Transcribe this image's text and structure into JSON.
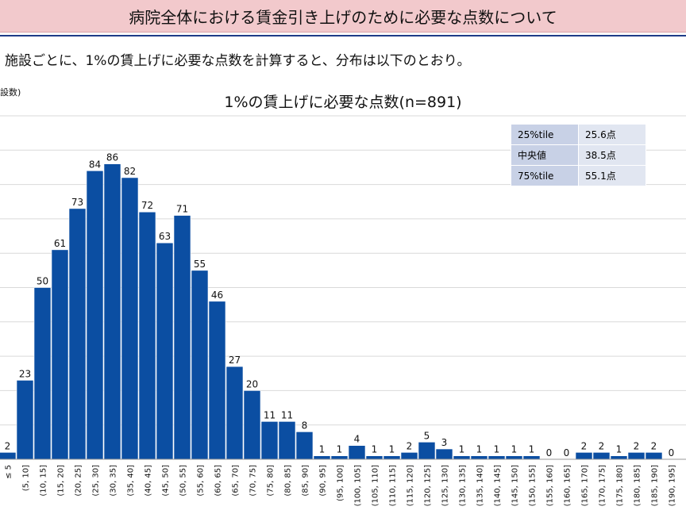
{
  "banner_title": "病院全体における賃金引き上げのために必要な点数について",
  "subtitle": "施設ごとに、1%の賃上げに必要な点数を計算すると、分布は以下のとおり。",
  "stats_table": [
    {
      "label": "25%tile",
      "value": "25.6点"
    },
    {
      "label": "中央値",
      "value": "38.5点"
    },
    {
      "label": "75%tile",
      "value": "55.1点"
    }
  ],
  "chart_data": {
    "type": "bar",
    "title": "1%の賃上げに必要な点数(n=891)",
    "ylabel": "設数)",
    "xlabel": "",
    "ylim": [
      0,
      100
    ],
    "grid": true,
    "bar_color": "#0b4ea2",
    "categories": [
      "≤ 5",
      "(5, 10]",
      "(10, 15]",
      "(15, 20]",
      "(20, 25]",
      "(25, 30]",
      "(30, 35]",
      "(35, 40]",
      "(40, 45]",
      "(45, 50]",
      "(50, 55]",
      "(55, 60]",
      "(60, 65]",
      "(65, 70]",
      "(70, 75]",
      "(75, 80]",
      "(80, 85]",
      "(85, 90]",
      "(90, 95]",
      "(95, 100]",
      "(100, 105]",
      "(105, 110]",
      "(110, 115]",
      "(115, 120]",
      "(120, 125]",
      "(125, 130]",
      "(130, 135]",
      "(135, 140]",
      "(140, 145]",
      "(145, 150]",
      "(150, 155]",
      "(155, 160]",
      "(160, 165]",
      "(165, 170]",
      "(170, 175]",
      "(175, 180]",
      "(180, 185]",
      "(185, 190]",
      "(190, 195]"
    ],
    "values": [
      2,
      23,
      50,
      61,
      73,
      84,
      86,
      82,
      72,
      63,
      71,
      55,
      46,
      27,
      20,
      11,
      11,
      8,
      1,
      1,
      4,
      1,
      1,
      2,
      5,
      3,
      1,
      1,
      1,
      1,
      1,
      0,
      0,
      2,
      2,
      1,
      2,
      2,
      0
    ]
  }
}
